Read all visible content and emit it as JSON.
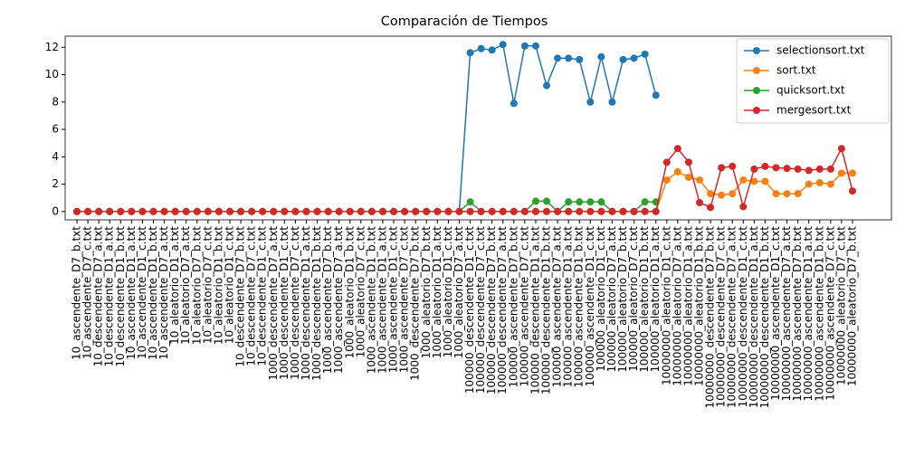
{
  "chart_data": {
    "type": "line",
    "title": "Comparación de Tiempos",
    "categories": [
      "10_ascendente_D7_b.txt",
      "10_ascendente_D7_c.txt",
      "10_descendente_D7_a.txt",
      "10_descendente_D1_a.txt",
      "10_descendente_D1_b.txt",
      "10_ascendente_D1_a.txt",
      "10_ascendente_D1_c.txt",
      "10_ascendente_D1_b.txt",
      "10_ascendente_D7_a.txt",
      "10_aleatorio_D1_a.txt",
      "10_aleatorio_D7_a.txt",
      "10_aleatorio_D7_b.txt",
      "10_aleatorio_D7_c.txt",
      "10_aleatorio_D1_b.txt",
      "10_aleatorio_D1_c.txt",
      "10_descendente_D7_b.txt",
      "10_descendente_D7_c.txt",
      "10_descendente_D1_c.txt",
      "1000_descendente_D7_a.txt",
      "1000_descendente_D1_c.txt",
      "1000_descendente_D7_c.txt",
      "1000_descendente_D1_a.txt",
      "1000_descendente_D1_b.txt",
      "1000_ascendente_D7_b.txt",
      "1000_ascendente_D7_a.txt",
      "1000_aleatorio_D1_b.txt",
      "1000_aleatorio_D7_c.txt",
      "1000_ascendente_D1_b.txt",
      "1000_ascendente_D1_a.txt",
      "1000_ascendente_D1_c.txt",
      "1000_ascendente_D7_c.txt",
      "1000_descendente_D7_b.txt",
      "1000_aleatorio_D7_b.txt",
      "1000_aleatorio_D1_a.txt",
      "1000_aleatorio_D1_c.txt",
      "1000_aleatorio_D7_a.txt",
      "100000_descendente_D1_c.txt",
      "100000_descendente_D7_c.txt",
      "100000_descendente_D7_b.txt",
      "100000_descendente_D7_a.txt",
      "100000_ascendente_D7_b.txt",
      "100000_ascendente_D7_c.txt",
      "100000_descendente_D1_a.txt",
      "100000_descendente_D1_b.txt",
      "100000_ascendente_D7_a.txt",
      "100000_ascendente_D1_a.txt",
      "100000_ascendente_D1_b.txt",
      "100000_ascendente_D1_c.txt",
      "100000_aleatorio_D1_c.txt",
      "100000_aleatorio_D7_a.txt",
      "100000_aleatorio_D7_b.txt",
      "100000_aleatorio_D7_c.txt",
      "100000_aleatorio_D1_b.txt",
      "100000_aleatorio_D1_a.txt",
      "10000000_aleatorio_D1_c.txt",
      "10000000_aleatorio_D7_a.txt",
      "10000000_aleatorio_D1_a.txt",
      "10000000_aleatorio_D1_b.txt",
      "10000000_descendente_D7_b.txt",
      "10000000_descendente_D7_c.txt",
      "10000000_descendente_D7_a.txt",
      "10000000_descendente_D1_c.txt",
      "10000000_descendente_D1_a.txt",
      "10000000_descendente_D1_b.txt",
      "10000000_ascendente_D1_c.txt",
      "10000000_ascendente_D7_a.txt",
      "10000000_ascendente_D7_b.txt",
      "10000000_ascendente_D1_a.txt",
      "10000000_ascendente_D1_b.txt",
      "10000000_ascendente_D7_c.txt",
      "10000000_aleatorio_D7_c.txt",
      "10000000_aleatorio_D7_b.txt"
    ],
    "series": [
      {
        "name": "selectionsort.txt",
        "color": "#1f77b4",
        "values": [
          0,
          0,
          0,
          0,
          0,
          0,
          0,
          0,
          0,
          0,
          0,
          0,
          0,
          0,
          0,
          0,
          0,
          0,
          0,
          0,
          0,
          0,
          0,
          0,
          0,
          0,
          0,
          0,
          0,
          0,
          0,
          0,
          0,
          0,
          0,
          0,
          11.6,
          11.9,
          11.8,
          12.2,
          7.9,
          12.1,
          12.1,
          9.2,
          11.2,
          11.2,
          11.1,
          8.0,
          11.3,
          8.0,
          11.1,
          11.2,
          11.5,
          8.5,
          null,
          null,
          null,
          null,
          null,
          null,
          null,
          null,
          null,
          null,
          null,
          null,
          null,
          null,
          null,
          null,
          null,
          null
        ]
      },
      {
        "name": "sort.txt",
        "color": "#ff7f0e",
        "values": [
          0,
          0,
          0,
          0,
          0,
          0,
          0,
          0,
          0,
          0,
          0,
          0,
          0,
          0,
          0,
          0,
          0,
          0,
          0,
          0,
          0,
          0,
          0,
          0,
          0,
          0,
          0,
          0,
          0,
          0,
          0,
          0,
          0,
          0,
          0,
          0,
          0,
          0,
          0,
          0,
          0,
          0,
          0,
          0,
          0,
          0,
          0,
          0,
          0,
          0,
          0,
          0,
          0,
          0,
          2.3,
          2.9,
          2.5,
          2.3,
          1.3,
          1.2,
          1.3,
          2.3,
          2.2,
          2.2,
          1.3,
          1.3,
          1.3,
          2.0,
          2.1,
          2.0,
          2.8,
          2.8
        ]
      },
      {
        "name": "quicksort.txt",
        "color": "#2ca02c",
        "values": [
          0,
          0,
          0,
          0,
          0,
          0,
          0,
          0,
          0,
          0,
          0,
          0,
          0,
          0,
          0,
          0,
          0,
          0,
          0,
          0,
          0,
          0,
          0,
          0,
          0,
          0,
          0,
          0,
          0,
          0,
          0,
          0,
          0,
          0,
          0,
          0,
          0.7,
          0,
          0,
          0,
          0,
          0,
          0.75,
          0.75,
          0,
          0.7,
          0.7,
          0.7,
          0.7,
          0,
          0,
          0,
          0.7,
          0.7,
          null,
          null,
          null,
          null,
          null,
          null,
          null,
          null,
          null,
          null,
          null,
          null,
          null,
          null,
          null,
          null,
          null,
          null
        ]
      },
      {
        "name": "mergesort.txt",
        "color": "#d62728",
        "values": [
          0,
          0,
          0,
          0,
          0,
          0,
          0,
          0,
          0,
          0,
          0,
          0,
          0,
          0,
          0,
          0,
          0,
          0,
          0,
          0,
          0,
          0,
          0,
          0,
          0,
          0,
          0,
          0,
          0,
          0,
          0,
          0,
          0,
          0,
          0,
          0,
          0,
          0,
          0,
          0,
          0,
          0,
          0,
          0,
          0,
          0,
          0,
          0,
          0,
          0,
          0,
          0,
          0,
          0,
          3.6,
          4.6,
          3.6,
          0.65,
          0.3,
          3.2,
          3.3,
          0.35,
          3.1,
          3.3,
          3.2,
          3.15,
          3.1,
          3.0,
          3.1,
          3.1,
          4.6,
          1.5
        ]
      }
    ],
    "ylim": [
      -0.61,
      12.81
    ],
    "yticks": [
      0,
      2,
      4,
      6,
      8,
      10,
      12
    ],
    "legend": "upper right",
    "marker": "o",
    "grid": false
  }
}
